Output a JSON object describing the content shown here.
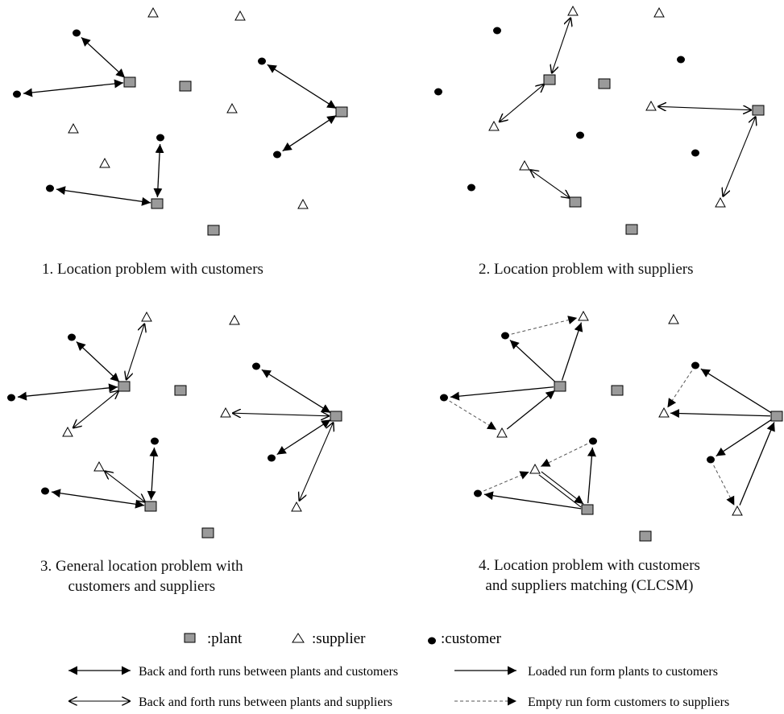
{
  "captions": {
    "panel1": [
      "1. Location problem with customers"
    ],
    "panel2": [
      "2. Location problem with suppliers"
    ],
    "panel3": [
      "3. General location problem with",
      "customers and suppliers"
    ],
    "panel4": [
      "4. Location problem with customers",
      "and suppliers matching (CLCSM)"
    ]
  },
  "legend": {
    "plant": ":plant",
    "supplier": ":supplier",
    "customer": ":customer",
    "arrows": {
      "bf_customers": "Back and forth runs between plants and customers",
      "loaded": "Loaded run form plants to customers",
      "bf_suppliers": "Back and forth runs between plants and suppliers",
      "empty": "Empty run form customers to suppliers"
    }
  },
  "colors": {
    "plant_fill": "#9a9a9a",
    "stroke": "#000000",
    "dashed": "#555555"
  },
  "icons": {
    "plant": "gray-square-icon",
    "supplier": "hollow-triangle-icon",
    "customer": "filled-ellipse-icon"
  }
}
